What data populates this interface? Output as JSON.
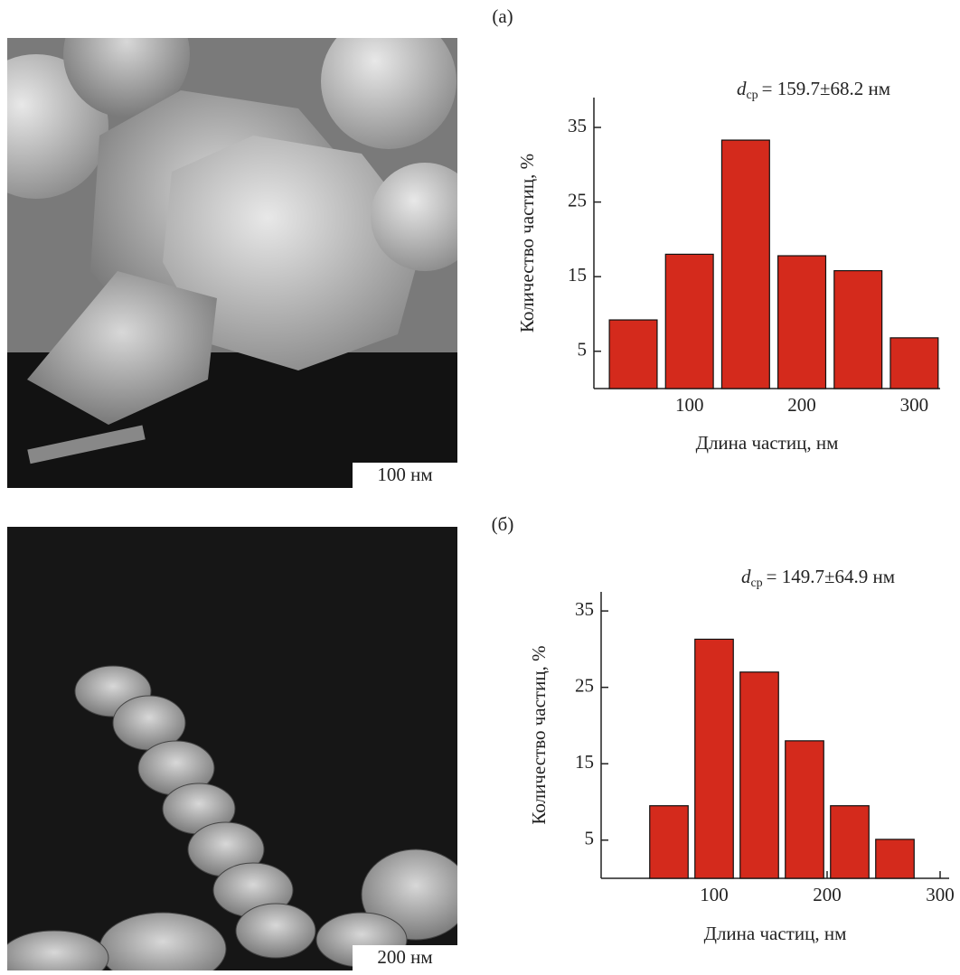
{
  "panels": [
    {
      "label": "(а)",
      "scale_bar": "100 нм"
    },
    {
      "label": "(б)",
      "scale_bar": "200 нм"
    }
  ],
  "chart_data": [
    {
      "type": "bar",
      "annotation": {
        "symbol": "d",
        "subscript": "ср",
        "text": "= 159.7±68.2 нм"
      },
      "x_label": "Длина частиц, нм",
      "y_label": "Количество частиц, %",
      "x": [
        50,
        100,
        150,
        200,
        250,
        300
      ],
      "values": [
        9.2,
        18.0,
        33.3,
        17.8,
        15.8,
        6.8
      ],
      "color": "#d42a1c",
      "xlim": [
        15,
        323
      ],
      "xticks": [
        100,
        200,
        300
      ],
      "ylim": [
        0,
        39
      ],
      "yticks": [
        5,
        15,
        25,
        35
      ]
    },
    {
      "type": "bar",
      "annotation": {
        "symbol": "d",
        "subscript": "ср",
        "text": "= 149.7±64.9 нм"
      },
      "x_label": "Длина частиц, нм",
      "y_label": "Количество частиц, %",
      "x": [
        60,
        100,
        140,
        180,
        220,
        260
      ],
      "values": [
        9.5,
        31.3,
        27.0,
        18.0,
        9.5,
        5.1
      ],
      "color": "#d42a1c",
      "xlim": [
        0,
        308
      ],
      "xticks": [
        100,
        200,
        300
      ],
      "ylim": [
        0,
        37.5
      ],
      "yticks": [
        5,
        15,
        25,
        35
      ]
    }
  ]
}
